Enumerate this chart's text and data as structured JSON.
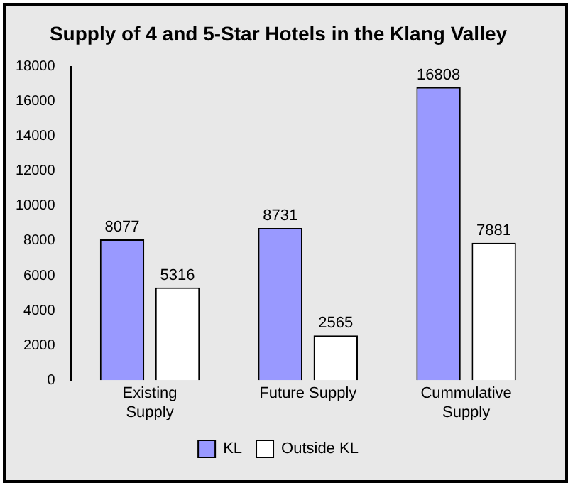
{
  "chart_data": {
    "type": "bar",
    "title": "Supply of 4 and 5-Star Hotels in the Klang Valley",
    "categories": [
      "Existing Supply",
      "Future Supply",
      "Cummulative Supply"
    ],
    "series": [
      {
        "name": "KL",
        "color": "#9999ff",
        "values": [
          8077,
          8731,
          16808
        ]
      },
      {
        "name": "Outside KL",
        "color": "#ffffff",
        "values": [
          5316,
          2565,
          7881
        ]
      }
    ],
    "ylim": [
      0,
      18000
    ],
    "yticks": [
      0,
      2000,
      4000,
      6000,
      8000,
      10000,
      12000,
      14000,
      16000,
      18000
    ],
    "grid": false,
    "legend": "bottom",
    "data_labels": true
  }
}
